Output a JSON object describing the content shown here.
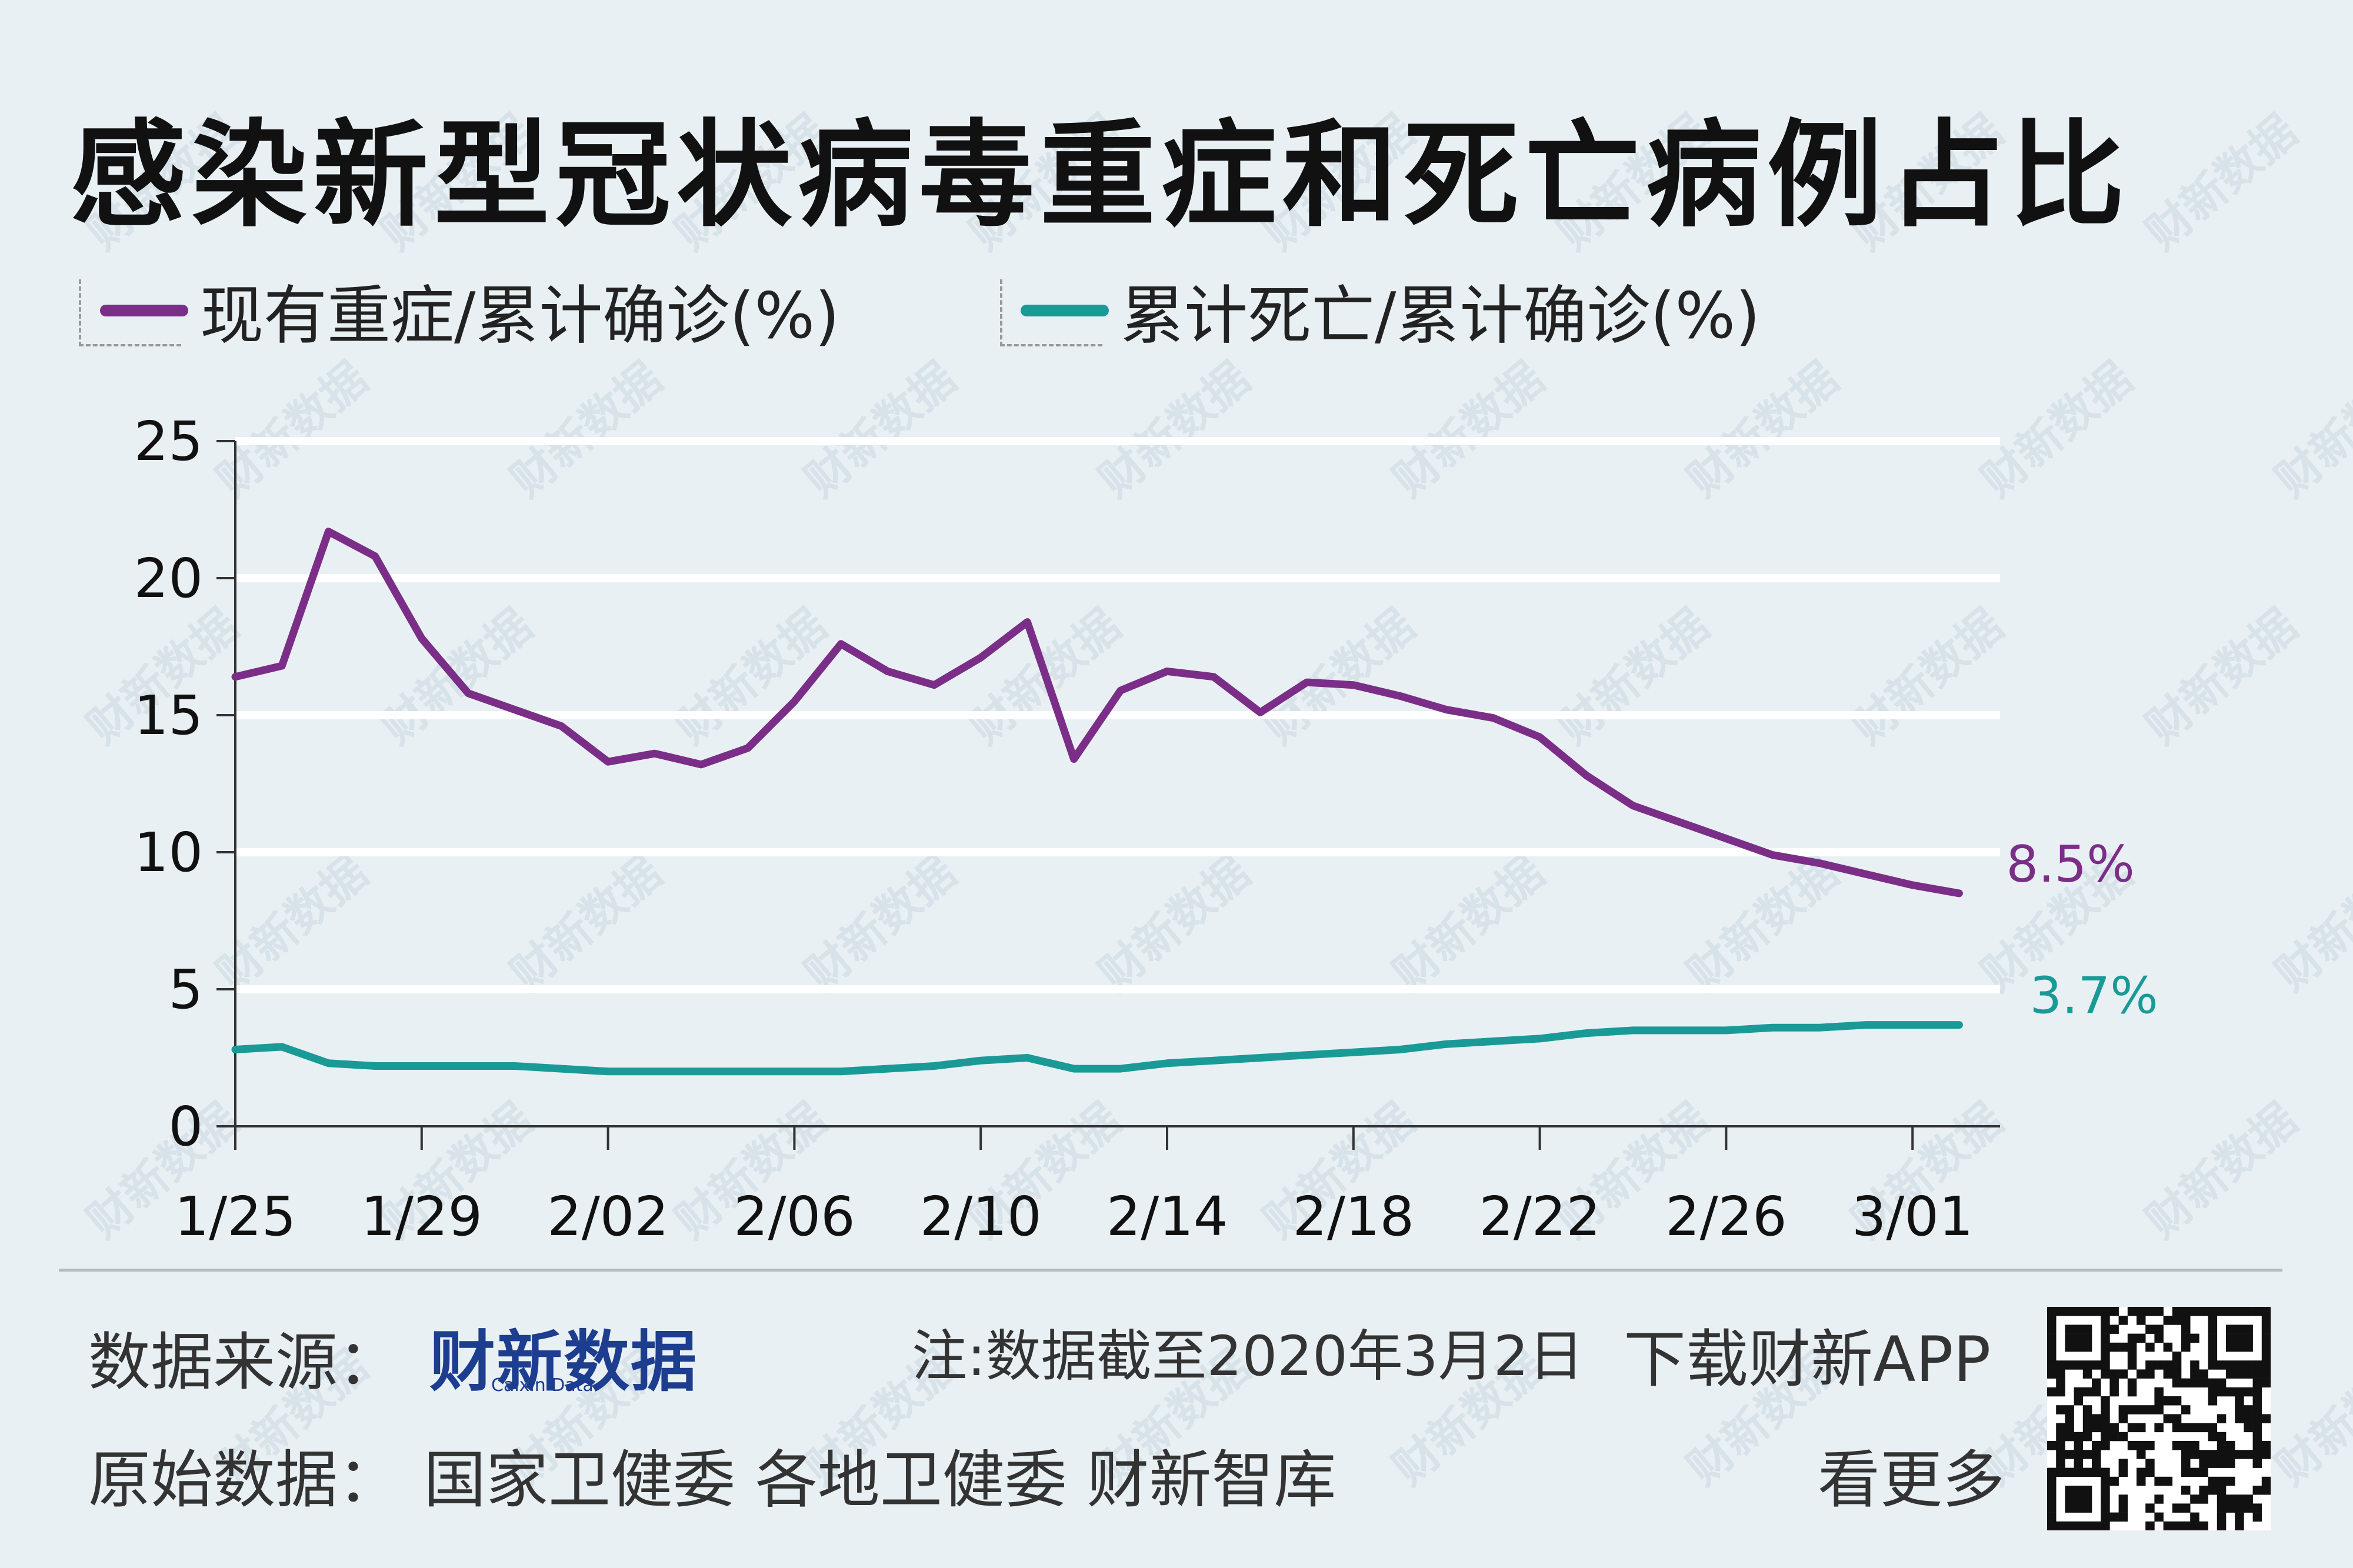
{
  "title": "感染新型冠状病毒重症和死亡病例占比",
  "colors": {
    "severe": "#7b2e87",
    "death": "#1a9a96",
    "background": "#e9f0f4",
    "grid": "#ffffff",
    "logo": "#1d3d8f"
  },
  "chart_data": {
    "type": "line",
    "x": [
      "1/25",
      "1/26",
      "1/27",
      "1/28",
      "1/29",
      "1/30",
      "1/31",
      "2/01",
      "2/02",
      "2/03",
      "2/04",
      "2/05",
      "2/06",
      "2/07",
      "2/08",
      "2/09",
      "2/10",
      "2/11",
      "2/12",
      "2/13",
      "2/14",
      "2/15",
      "2/16",
      "2/17",
      "2/18",
      "2/19",
      "2/20",
      "2/21",
      "2/22",
      "2/23",
      "2/24",
      "2/25",
      "2/26",
      "2/27",
      "2/28",
      "2/29",
      "3/01",
      "3/02"
    ],
    "x_ticks": [
      "1/25",
      "1/29",
      "2/02",
      "2/06",
      "2/10",
      "2/14",
      "2/18",
      "2/22",
      "2/26",
      "3/01"
    ],
    "ylim": [
      0,
      25
    ],
    "y_ticks": [
      0,
      5,
      10,
      15,
      20,
      25
    ],
    "grid": true,
    "legend_position": "top-left",
    "series": [
      {
        "name": "现有重症/累计确诊(%)",
        "color": "#7b2e87",
        "end_label": "8.5%",
        "values": [
          16.4,
          16.8,
          21.7,
          20.8,
          17.8,
          15.8,
          15.2,
          14.6,
          13.3,
          13.6,
          13.2,
          13.8,
          15.5,
          17.6,
          16.6,
          16.1,
          17.1,
          18.4,
          13.4,
          15.9,
          16.6,
          16.4,
          15.1,
          16.2,
          16.1,
          15.7,
          15.2,
          14.9,
          14.2,
          12.8,
          11.7,
          11.1,
          10.5,
          9.9,
          9.6,
          9.2,
          8.8,
          8.5
        ]
      },
      {
        "name": "累计死亡/累计确诊(%)",
        "color": "#1a9a96",
        "end_label": "3.7%",
        "values": [
          2.8,
          2.9,
          2.3,
          2.2,
          2.2,
          2.2,
          2.2,
          2.1,
          2.0,
          2.0,
          2.0,
          2.0,
          2.0,
          2.0,
          2.1,
          2.2,
          2.4,
          2.5,
          2.1,
          2.1,
          2.3,
          2.4,
          2.5,
          2.6,
          2.7,
          2.8,
          3.0,
          3.1,
          3.2,
          3.4,
          3.5,
          3.5,
          3.5,
          3.6,
          3.6,
          3.7,
          3.7,
          3.7
        ]
      }
    ]
  },
  "footer": {
    "source_label": "数据来源：",
    "logo_text": "财新数据",
    "logo_sub": "Caixin Data",
    "note": "注:数据截至2020年3月2日",
    "download": "下载财新APP",
    "raw_label": "原始数据：",
    "raw_sources": "国家卫健委  各地卫健委  财新智库",
    "see_more": "看更多"
  },
  "watermark_text": "财新数据"
}
